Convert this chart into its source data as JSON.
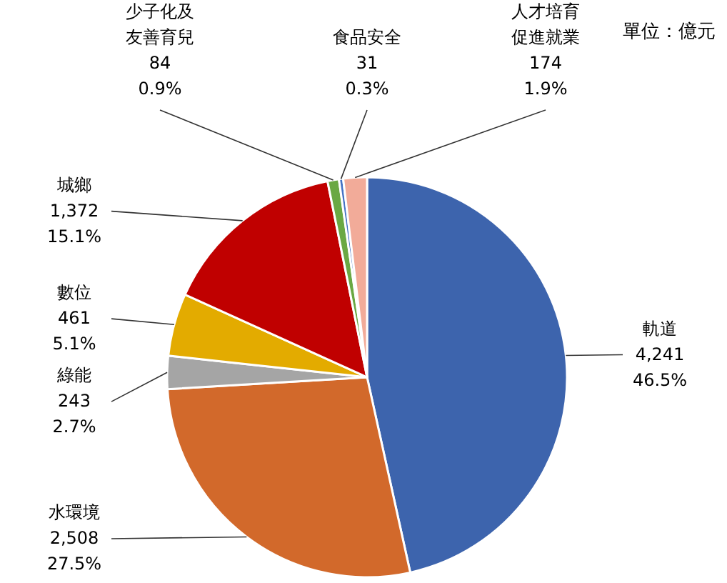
{
  "chart_data": {
    "type": "pie",
    "annotations": [
      "單位：億元"
    ],
    "categories": [
      "軌道",
      "水環境",
      "綠能",
      "數位",
      "城鄉",
      "少子化及友善育兒",
      "食品安全",
      "人才培育促進就業"
    ],
    "values": [
      4241,
      2508,
      243,
      461,
      1372,
      84,
      31,
      174
    ],
    "colors": [
      "#3d64ad",
      "#d2692b",
      "#a5a5a5",
      "#e3ab00",
      "#c00000",
      "#6aa843",
      "#4472c4",
      "#f2ab99"
    ],
    "value_labels": [
      "4,241\n46.5%",
      "2,508\n27.5%",
      "243\n2.7%",
      "461\n5.1%",
      "1,372\n15.1%",
      "84\n0.9%",
      "31\n0.3%",
      "174\n1.9%"
    ]
  }
}
